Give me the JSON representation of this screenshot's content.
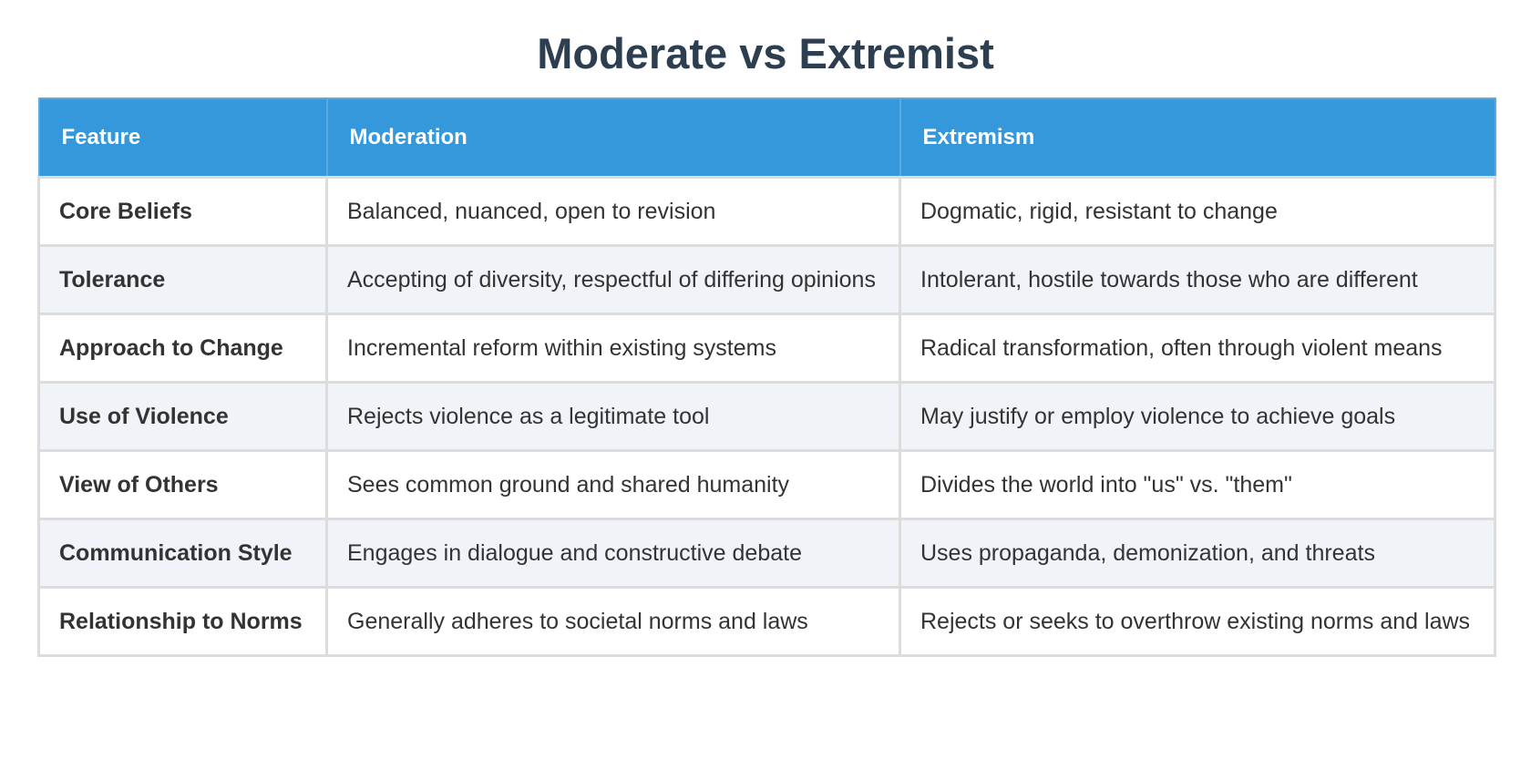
{
  "title": "Moderate vs Extremist",
  "table": {
    "headers": [
      "Feature",
      "Moderation",
      "Extremism"
    ],
    "rows": [
      [
        "Core Beliefs",
        "Balanced, nuanced, open to revision",
        "Dogmatic, rigid, resistant to change"
      ],
      [
        "Tolerance",
        "Accepting of diversity, respectful of differing opinions",
        "Intolerant, hostile towards those who are different"
      ],
      [
        "Approach to Change",
        "Incremental reform within existing systems",
        "Radical transformation, often through violent means"
      ],
      [
        "Use of Violence",
        "Rejects violence as a legitimate tool",
        "May justify or employ violence to achieve goals"
      ],
      [
        "View of Others",
        "Sees common ground and shared humanity",
        "Divides the world into \"us\" vs. \"them\""
      ],
      [
        "Communication Style",
        "Engages in dialogue and constructive debate",
        "Uses propaganda, demonization, and threats"
      ],
      [
        "Relationship to Norms",
        "Generally adheres to societal norms and laws",
        "Rejects or seeks to overthrow existing norms and laws"
      ]
    ]
  }
}
